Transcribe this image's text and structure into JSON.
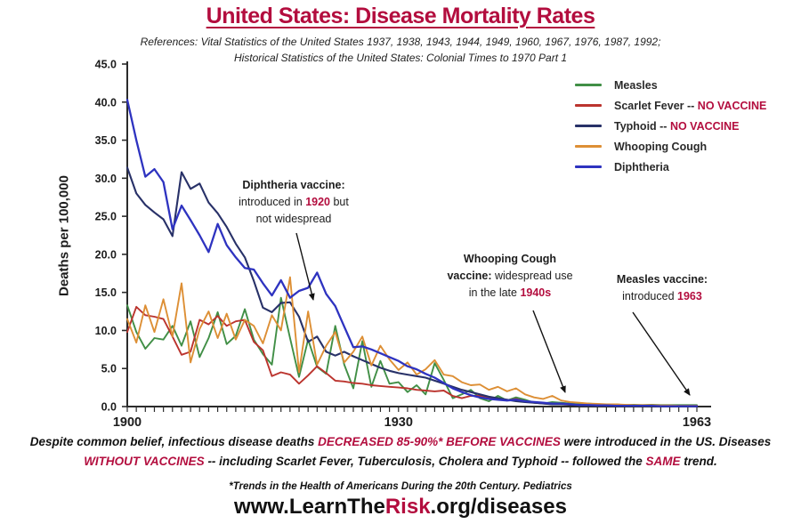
{
  "header": {
    "title": "United States: Disease Mortality Rates",
    "reference_line1": "References: Vital Statistics of the United States 1937, 1938, 1943, 1944, 1949, 1960, 1967, 1976, 1987, 1992;",
    "reference_line2": "Historical Statistics of the United States: Colonial Times to 1970 Part 1"
  },
  "colors": {
    "accent": "#b30d3e",
    "axis": "#2b2b2b",
    "measles_green": "#418f46",
    "scarlet_red": "#bb342e",
    "typhoid_navy": "#283168",
    "whooping_orange": "#dd8f35",
    "diphtheria_blue": "#2e33c0"
  },
  "chart_data": {
    "type": "line",
    "title": "United States: Disease Mortality Rates",
    "xlabel": "",
    "ylabel": "Deaths per 100,000",
    "x_range": [
      1900,
      1963
    ],
    "x_step_years": 1,
    "ylim": [
      0,
      45
    ],
    "y_ticks": [
      "0.0",
      "5.0",
      "10.0",
      "15.0",
      "20.0",
      "25.0",
      "30.0",
      "35.0",
      "40.0",
      "45.0"
    ],
    "x_tick_labels": [
      {
        "label": "1900",
        "year": 1900
      },
      {
        "label": "1930",
        "year": 1930
      },
      {
        "label": "1963",
        "year": 1963
      }
    ],
    "grid": false,
    "legend_position": "top-right",
    "series": [
      {
        "id": "measles",
        "name": "Measles",
        "color": "#418f46",
        "values": [
          13.3,
          9.8,
          7.6,
          9.0,
          8.8,
          10.6,
          8.0,
          11.2,
          6.5,
          9.0,
          12.4,
          8.2,
          9.3,
          12.8,
          8.8,
          6.9,
          5.5,
          14.3,
          9.0,
          3.9,
          8.8,
          5.2,
          4.3,
          10.6,
          5.5,
          2.4,
          8.6,
          2.6,
          6.0,
          3.0,
          3.2,
          1.9,
          2.8,
          1.6,
          5.7,
          3.5,
          1.1,
          1.6,
          2.2,
          1.1,
          0.7,
          1.4,
          0.8,
          1.2,
          0.9,
          0.5,
          0.4,
          0.6,
          0.5,
          0.4,
          0.3,
          0.4,
          0.3,
          0.25,
          0.3,
          0.2,
          0.25,
          0.2,
          0.25,
          0.2,
          0.2,
          0.2,
          0.2,
          0.2
        ]
      },
      {
        "id": "scarlet-fever",
        "name": "Scarlet Fever -- NO VACCINE",
        "color": "#bb342e",
        "values": [
          9.8,
          13.1,
          12.0,
          11.8,
          11.5,
          9.2,
          6.8,
          7.2,
          11.4,
          10.8,
          11.9,
          10.6,
          11.2,
          11.4,
          8.5,
          7.4,
          4.0,
          4.5,
          4.2,
          3.0,
          4.1,
          5.3,
          4.4,
          3.4,
          3.3,
          3.1,
          3.0,
          2.8,
          2.7,
          2.6,
          2.5,
          2.4,
          2.2,
          2.1,
          2.0,
          2.1,
          1.4,
          1.1,
          1.4,
          1.4,
          1.2,
          1.0,
          0.8,
          1.0,
          0.7,
          0.5,
          0.4,
          0.3,
          0.3,
          0.25,
          0.2,
          0.2,
          0.15,
          0.15,
          0.1,
          0.1,
          0.1,
          0.1,
          0.1,
          0.1,
          0.1,
          0.1,
          0.1,
          0.1
        ]
      },
      {
        "id": "typhoid",
        "name": "Typhoid -- NO VACCINE",
        "color": "#283168",
        "values": [
          31.4,
          28.0,
          26.5,
          25.5,
          24.6,
          22.4,
          30.8,
          28.6,
          29.3,
          26.8,
          25.4,
          23.6,
          21.4,
          19.6,
          16.5,
          13.0,
          12.4,
          13.6,
          13.7,
          11.8,
          8.5,
          9.2,
          7.2,
          6.7,
          7.2,
          6.6,
          6.1,
          5.6,
          5.1,
          4.7,
          4.4,
          4.2,
          4.0,
          3.8,
          3.4,
          3.0,
          2.6,
          2.2,
          1.9,
          1.6,
          1.3,
          1.1,
          0.9,
          0.7,
          0.6,
          0.5,
          0.4,
          0.3,
          0.3,
          0.25,
          0.2,
          0.2,
          0.15,
          0.15,
          0.1,
          0.1,
          0.1,
          0.1,
          0.1,
          0.1,
          0.1,
          0.1,
          0.1,
          0.1
        ]
      },
      {
        "id": "whooping-cough",
        "name": "Whooping Cough",
        "color": "#dd8f35",
        "values": [
          11.5,
          8.4,
          13.3,
          9.8,
          14.1,
          9.2,
          16.2,
          5.8,
          10.2,
          12.5,
          9.0,
          12.2,
          8.8,
          11.4,
          10.6,
          8.3,
          12.0,
          10.0,
          17.0,
          4.5,
          12.5,
          5.5,
          8.0,
          9.8,
          5.8,
          7.2,
          9.2,
          5.4,
          8.0,
          6.2,
          4.8,
          5.8,
          4.2,
          4.9,
          6.1,
          4.2,
          4.0,
          3.2,
          2.8,
          2.9,
          2.2,
          2.6,
          2.0,
          2.4,
          1.6,
          1.2,
          1.0,
          1.4,
          0.8,
          0.6,
          0.5,
          0.4,
          0.35,
          0.3,
          0.3,
          0.25,
          0.2,
          0.2,
          0.2,
          0.15,
          0.15,
          0.1,
          0.1,
          0.1
        ]
      },
      {
        "id": "diphtheria",
        "name": "Diphtheria",
        "color": "#2e33c0",
        "values": [
          40.3,
          35.0,
          30.2,
          31.2,
          29.5,
          23.3,
          26.4,
          24.5,
          22.5,
          20.3,
          24.0,
          21.2,
          19.6,
          18.2,
          18.0,
          16.2,
          14.6,
          16.6,
          14.3,
          15.2,
          15.6,
          17.6,
          14.8,
          13.2,
          10.5,
          7.8,
          7.9,
          7.5,
          7.0,
          6.5,
          6.0,
          5.3,
          4.9,
          4.3,
          3.8,
          3.1,
          2.4,
          1.9,
          1.5,
          1.2,
          1.0,
          0.9,
          0.8,
          0.9,
          0.7,
          0.6,
          0.5,
          0.4,
          0.4,
          0.3,
          0.2,
          0.2,
          0.15,
          0.15,
          0.1,
          0.1,
          0.1,
          0.1,
          0.1,
          0.05,
          0.05,
          0.05,
          0.05,
          0.05
        ]
      }
    ]
  },
  "legend": {
    "items": [
      {
        "id": "measles",
        "color": "#418f46",
        "parts": [
          {
            "t": "Measles"
          }
        ]
      },
      {
        "id": "scarlet-fever",
        "color": "#bb342e",
        "parts": [
          {
            "t": "Scarlet Fever -- "
          },
          {
            "t": "NO VACCINE",
            "a": 1
          }
        ]
      },
      {
        "id": "typhoid",
        "color": "#283168",
        "parts": [
          {
            "t": "Typhoid -- "
          },
          {
            "t": "NO VACCINE",
            "a": 1
          }
        ]
      },
      {
        "id": "whooping-cough",
        "color": "#dd8f35",
        "parts": [
          {
            "t": "Whooping Cough"
          }
        ]
      },
      {
        "id": "diphtheria",
        "color": "#2e33c0",
        "parts": [
          {
            "t": "Diphtheria"
          }
        ]
      }
    ]
  },
  "annotations": [
    {
      "id": "diphtheria-vaccine",
      "target_year": 1920,
      "lines": [
        [
          {
            "t": "Diphtheria vaccine:",
            "b": 1
          }
        ],
        [
          {
            "t": "introduced in "
          },
          {
            "t": "1920",
            "b": 1,
            "a": 1
          },
          {
            "t": " but"
          }
        ],
        [
          {
            "t": "not widespread"
          }
        ]
      ]
    },
    {
      "id": "whooping-cough-vaccine",
      "target_year": 1948,
      "lines": [
        [
          {
            "t": "Whooping Cough",
            "b": 1
          }
        ],
        [
          {
            "t": "vaccine:",
            "b": 1
          },
          {
            "t": " widespread use"
          }
        ],
        [
          {
            "t": "in the late "
          },
          {
            "t": "1940s",
            "b": 1,
            "a": 1
          }
        ]
      ]
    },
    {
      "id": "measles-vaccine",
      "target_year": 1962,
      "lines": [
        [
          {
            "t": "Measles vaccine:",
            "b": 1
          }
        ],
        [
          {
            "t": "introduced "
          },
          {
            "t": "1963",
            "b": 1,
            "a": 1
          }
        ]
      ]
    }
  ],
  "footer": {
    "note_line1_parts": [
      {
        "t": "Despite common belief, infectious disease deaths "
      },
      {
        "t": "DECREASED 85-90%* BEFORE VACCINES",
        "a": 1
      },
      {
        "t": " were introduced in the US. Diseases"
      }
    ],
    "note_line2_parts": [
      {
        "t": "WITHOUT VACCINES",
        "a": 1
      },
      {
        "t": " -- including Scarlet Fever, Tuberculosis, Cholera and Typhoid -- followed the "
      },
      {
        "t": "SAME",
        "a": 1
      },
      {
        "t": " trend."
      }
    ],
    "citation": "*Trends in the Health of Americans During the 20th Century. Pediatrics",
    "website_parts": [
      {
        "t": "www.LearnThe"
      },
      {
        "t": "Risk",
        "a": 1
      },
      {
        "t": ".org/diseases"
      }
    ]
  }
}
